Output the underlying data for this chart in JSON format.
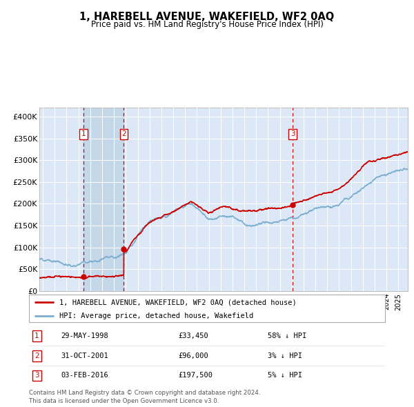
{
  "title": "1, HAREBELL AVENUE, WAKEFIELD, WF2 0AQ",
  "subtitle": "Price paid vs. HM Land Registry's House Price Index (HPI)",
  "sale_label": "1, HAREBELL AVENUE, WAKEFIELD, WF2 0AQ (detached house)",
  "hpi_label": "HPI: Average price, detached house, Wakefield",
  "footer1": "Contains HM Land Registry data © Crown copyright and database right 2024.",
  "footer2": "This data is licensed under the Open Government Licence v3.0.",
  "sales": [
    {
      "num": 1,
      "date": "29-MAY-1998",
      "price": 33450,
      "rel": "58% ↓ HPI",
      "year": 1998.41
    },
    {
      "num": 2,
      "date": "31-OCT-2001",
      "price": 96000,
      "rel": "3% ↓ HPI",
      "year": 2001.83
    },
    {
      "num": 3,
      "date": "03-FEB-2016",
      "price": 197500,
      "rel": "5% ↓ HPI",
      "year": 2016.09
    }
  ],
  "ylim": [
    0,
    420000
  ],
  "yticks": [
    0,
    50000,
    100000,
    150000,
    200000,
    250000,
    300000,
    350000,
    400000
  ],
  "ytick_labels": [
    "£0",
    "£50K",
    "£100K",
    "£150K",
    "£200K",
    "£250K",
    "£300K",
    "£350K",
    "£400K"
  ],
  "xlim_start": 1994.7,
  "xlim_end": 2025.8,
  "red_color": "#cc0000",
  "blue_color": "#7aadcf",
  "shade_color": "#c5d8ea",
  "grid_color": "#ffffff",
  "plot_bg": "#dce8f5",
  "sale1_x": 1998.41,
  "sale2_x": 2001.83,
  "sale3_x": 2016.09
}
